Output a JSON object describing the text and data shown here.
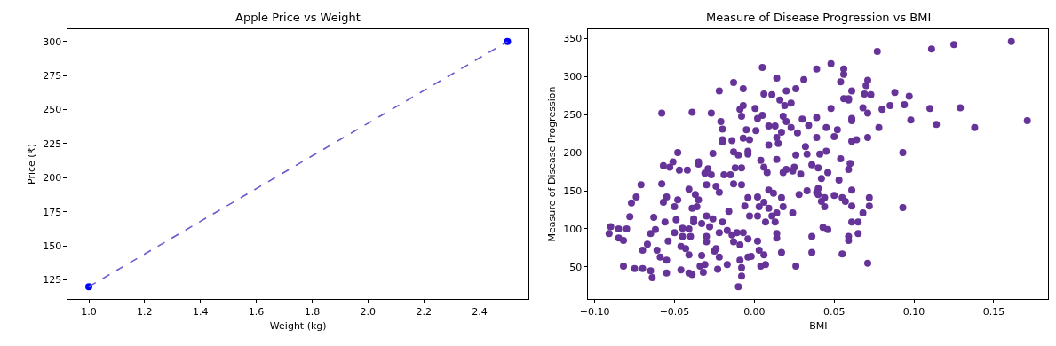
{
  "chart_data": [
    {
      "type": "line",
      "title": "Apple Price vs Weight",
      "xlabel": "Weight (kg)",
      "ylabel": "Price (₹)",
      "xlim": [
        0.925,
        2.575
      ],
      "ylim": [
        111,
        309
      ],
      "xticks": [
        {
          "value": 1,
          "label": "1.0"
        },
        {
          "value": 1.2,
          "label": "1.2"
        },
        {
          "value": 1.4,
          "label": "1.4"
        },
        {
          "value": 1.6,
          "label": "1.6"
        },
        {
          "value": 1.8,
          "label": "1.8"
        },
        {
          "value": 2,
          "label": "2.0"
        },
        {
          "value": 2.2,
          "label": "2.2"
        },
        {
          "value": 2.4,
          "label": "2.4"
        }
      ],
      "yticks": [
        125,
        150,
        175,
        200,
        225,
        250,
        275,
        300
      ],
      "series": [
        {
          "type": "scatter",
          "color": "#0000ff",
          "marker": "circle",
          "x": [
            1.0,
            2.5
          ],
          "values": [
            120,
            300
          ]
        },
        {
          "type": "line",
          "color": "#6a5acd",
          "line_style": "dashed",
          "marker": "none",
          "x": [
            1.0,
            2.5
          ],
          "values": [
            120,
            300
          ]
        }
      ]
    },
    {
      "type": "scatter",
      "title": "Measure of Disease Progression vs BMI",
      "xlabel": "BMI",
      "ylabel": "Measure of Disease Progression",
      "xlim": [
        -0.104,
        0.184
      ],
      "ylim": [
        8,
        362
      ],
      "xticks": [
        {
          "value": -0.1,
          "label": "−0.10"
        },
        {
          "value": -0.05,
          "label": "−0.05"
        },
        {
          "value": 0,
          "label": "0.00"
        },
        {
          "value": 0.05,
          "label": "0.05"
        },
        {
          "value": 0.1,
          "label": "0.10"
        },
        {
          "value": 0.15,
          "label": "0.15"
        }
      ],
      "yticks": [
        50,
        100,
        150,
        200,
        250,
        300,
        350
      ],
      "marker": "circle",
      "series": [
        {
          "color": "#663399",
          "x": [
            -0.058,
            -0.039,
            -0.027,
            0.005,
            0.014,
            -0.013,
            -0.022,
            -0.007,
            0.006,
            0.011,
            0.02,
            0.026,
            0.031,
            0.039,
            0.016,
            0.023,
            0.019,
            -0.009,
            -0.007,
            0.0005,
            -0.008,
            0.005,
            0.002,
            -0.021,
            -0.02,
            -0.005,
            0.001,
            0.009,
            0.013,
            0.018,
            0.02,
            0.023,
            0.03,
            0.034,
            0.017,
            0.014,
            0.027,
            -0.02,
            -0.02,
            -0.014,
            -0.007,
            -0.003,
            0.009,
            0.015,
            0.032,
            -0.048,
            -0.026,
            -0.013,
            -0.01,
            -0.004,
            -0.004,
            0.004,
            0.014,
            0.026,
            0.033,
            -0.057,
            -0.053,
            -0.051,
            -0.047,
            -0.042,
            -0.035,
            -0.035,
            -0.029,
            -0.031,
            -0.027,
            -0.019,
            -0.012,
            -0.008,
            0.006,
            0.008,
            0.018,
            0.02,
            0.025,
            0.029,
            0.036,
            -0.071,
            -0.058,
            -0.074,
            -0.077,
            -0.078,
            -0.09,
            -0.091,
            -0.085,
            -0.08,
            -0.085,
            -0.082,
            -0.082,
            -0.075,
            -0.07,
            -0.064,
            -0.065,
            -0.07,
            -0.067,
            -0.065,
            -0.062,
            -0.063,
            -0.056,
            -0.055,
            -0.057,
            -0.061,
            -0.059,
            -0.055,
            -0.055,
            -0.05,
            -0.048,
            -0.049,
            -0.054,
            -0.05,
            -0.045,
            -0.045,
            -0.046,
            -0.043,
            -0.041,
            -0.046,
            -0.041,
            -0.039,
            -0.041,
            -0.037,
            -0.035,
            -0.039,
            -0.036,
            -0.038,
            -0.038,
            -0.04,
            -0.041,
            -0.033,
            -0.031,
            -0.034,
            -0.032,
            -0.03,
            -0.033,
            -0.028,
            -0.03,
            -0.03,
            -0.024,
            -0.025,
            -0.022,
            -0.023,
            -0.03,
            -0.024,
            -0.022,
            -0.015,
            -0.026,
            -0.02,
            -0.022,
            -0.016,
            -0.017,
            -0.014,
            -0.013,
            -0.009,
            -0.011,
            -0.007,
            -0.004,
            -0.017,
            -0.009,
            -0.008,
            -0.008,
            -0.01,
            -0.013,
            -0.008,
            -0.004,
            -0.006,
            -0.003,
            0.002,
            0.003,
            0.006,
            0.009,
            0.002,
            0.007,
            0.011,
            0.014,
            0.013,
            0.009,
            0.012,
            0.017,
            0.018,
            0.002,
            0.003,
            0.006,
            0.004,
            0.007,
            -0.004,
            -0.002,
            0.014,
            0.014,
            0.017,
            0.026,
            0.024,
            0.028,
            0.033,
            0.039,
            0.036,
            0.036,
            0.024,
            0.161,
            0.125,
            0.111,
            0.077,
            0.048,
            0.056,
            0.056,
            0.054,
            0.071,
            0.07,
            0.061,
            0.069,
            0.073,
            0.056,
            0.059,
            0.059,
            0.088,
            0.097,
            0.085,
            0.094,
            0.11,
            0.129,
            0.048,
            0.068,
            0.071,
            0.08,
            0.061,
            0.061,
            0.098,
            0.114,
            0.138,
            0.171,
            0.039,
            0.045,
            0.052,
            0.05,
            0.078,
            0.039,
            0.061,
            0.064,
            0.071,
            0.093,
            0.041,
            0.045,
            0.054,
            0.06,
            0.059,
            0.04,
            0.046,
            0.042,
            0.053,
            0.061,
            0.04,
            0.04,
            0.05,
            0.055,
            0.044,
            0.042,
            0.044,
            0.057,
            0.061,
            0.072,
            0.072,
            0.093,
            0.068,
            0.061,
            0.065,
            0.065,
            0.043,
            0.046,
            0.059,
            0.059,
            0.055,
            0.071
          ],
          "values": [
            252,
            253,
            252,
            312,
            298,
            292,
            281,
            284,
            277,
            276,
            281,
            284,
            296,
            310,
            269,
            265,
            262,
            257,
            262,
            258,
            248,
            249,
            245,
            241,
            231,
            230,
            229,
            235,
            235,
            248,
            241,
            233,
            244,
            236,
            227,
            220,
            226,
            217,
            214,
            216,
            219,
            217,
            210,
            212,
            208,
            200,
            199,
            201,
            197,
            202,
            198,
            190,
            191,
            197,
            198,
            183,
            181,
            188,
            177,
            177,
            185,
            188,
            179,
            173,
            171,
            171,
            180,
            180,
            181,
            174,
            174,
            178,
            181,
            172,
            184,
            158,
            159,
            142,
            134,
            116,
            103,
            94,
            100,
            100,
            88,
            85,
            51,
            48,
            48,
            36,
            45,
            72,
            80,
            94,
            99,
            115,
            109,
            142,
            135,
            72,
            63,
            59,
            42,
            129,
            138,
            112,
            84,
            95,
            101,
            90,
            77,
            74,
            66,
            46,
            42,
            40,
            152,
            145,
            138,
            127,
            129,
            113,
            109,
            90,
            100,
            65,
            53,
            51,
            43,
            117,
            107,
            103,
            90,
            83,
            74,
            71,
            63,
            47,
            158,
            156,
            148,
            171,
            113,
            109,
            95,
            123,
            98,
            92,
            83,
            79,
            95,
            95,
            87,
            53,
            59,
            49,
            38,
            24,
            159,
            158,
            141,
            130,
            117,
            142,
            129,
            135,
            127,
            117,
            109,
            117,
            121,
            109,
            151,
            147,
            141,
            129,
            84,
            72,
            66,
            51,
            53,
            63,
            64,
            94,
            88,
            69,
            51,
            121,
            145,
            150,
            148,
            90,
            69,
            176,
            346,
            342,
            336,
            333,
            317,
            310,
            303,
            293,
            295,
            288,
            281,
            277,
            276,
            271,
            271,
            269,
            279,
            274,
            262,
            263,
            258,
            259,
            258,
            259,
            252,
            257,
            245,
            242,
            243,
            237,
            233,
            242,
            246,
            233,
            230,
            221,
            233,
            220,
            215,
            217,
            220,
            200,
            198,
            202,
            192,
            186,
            178,
            180,
            174,
            166,
            164,
            151,
            153,
            145,
            144,
            141,
            141,
            136,
            129,
            136,
            130,
            141,
            130,
            128,
            121,
            109,
            109,
            94,
            102,
            99,
            90,
            85,
            67,
            55
          ]
        }
      ]
    }
  ]
}
